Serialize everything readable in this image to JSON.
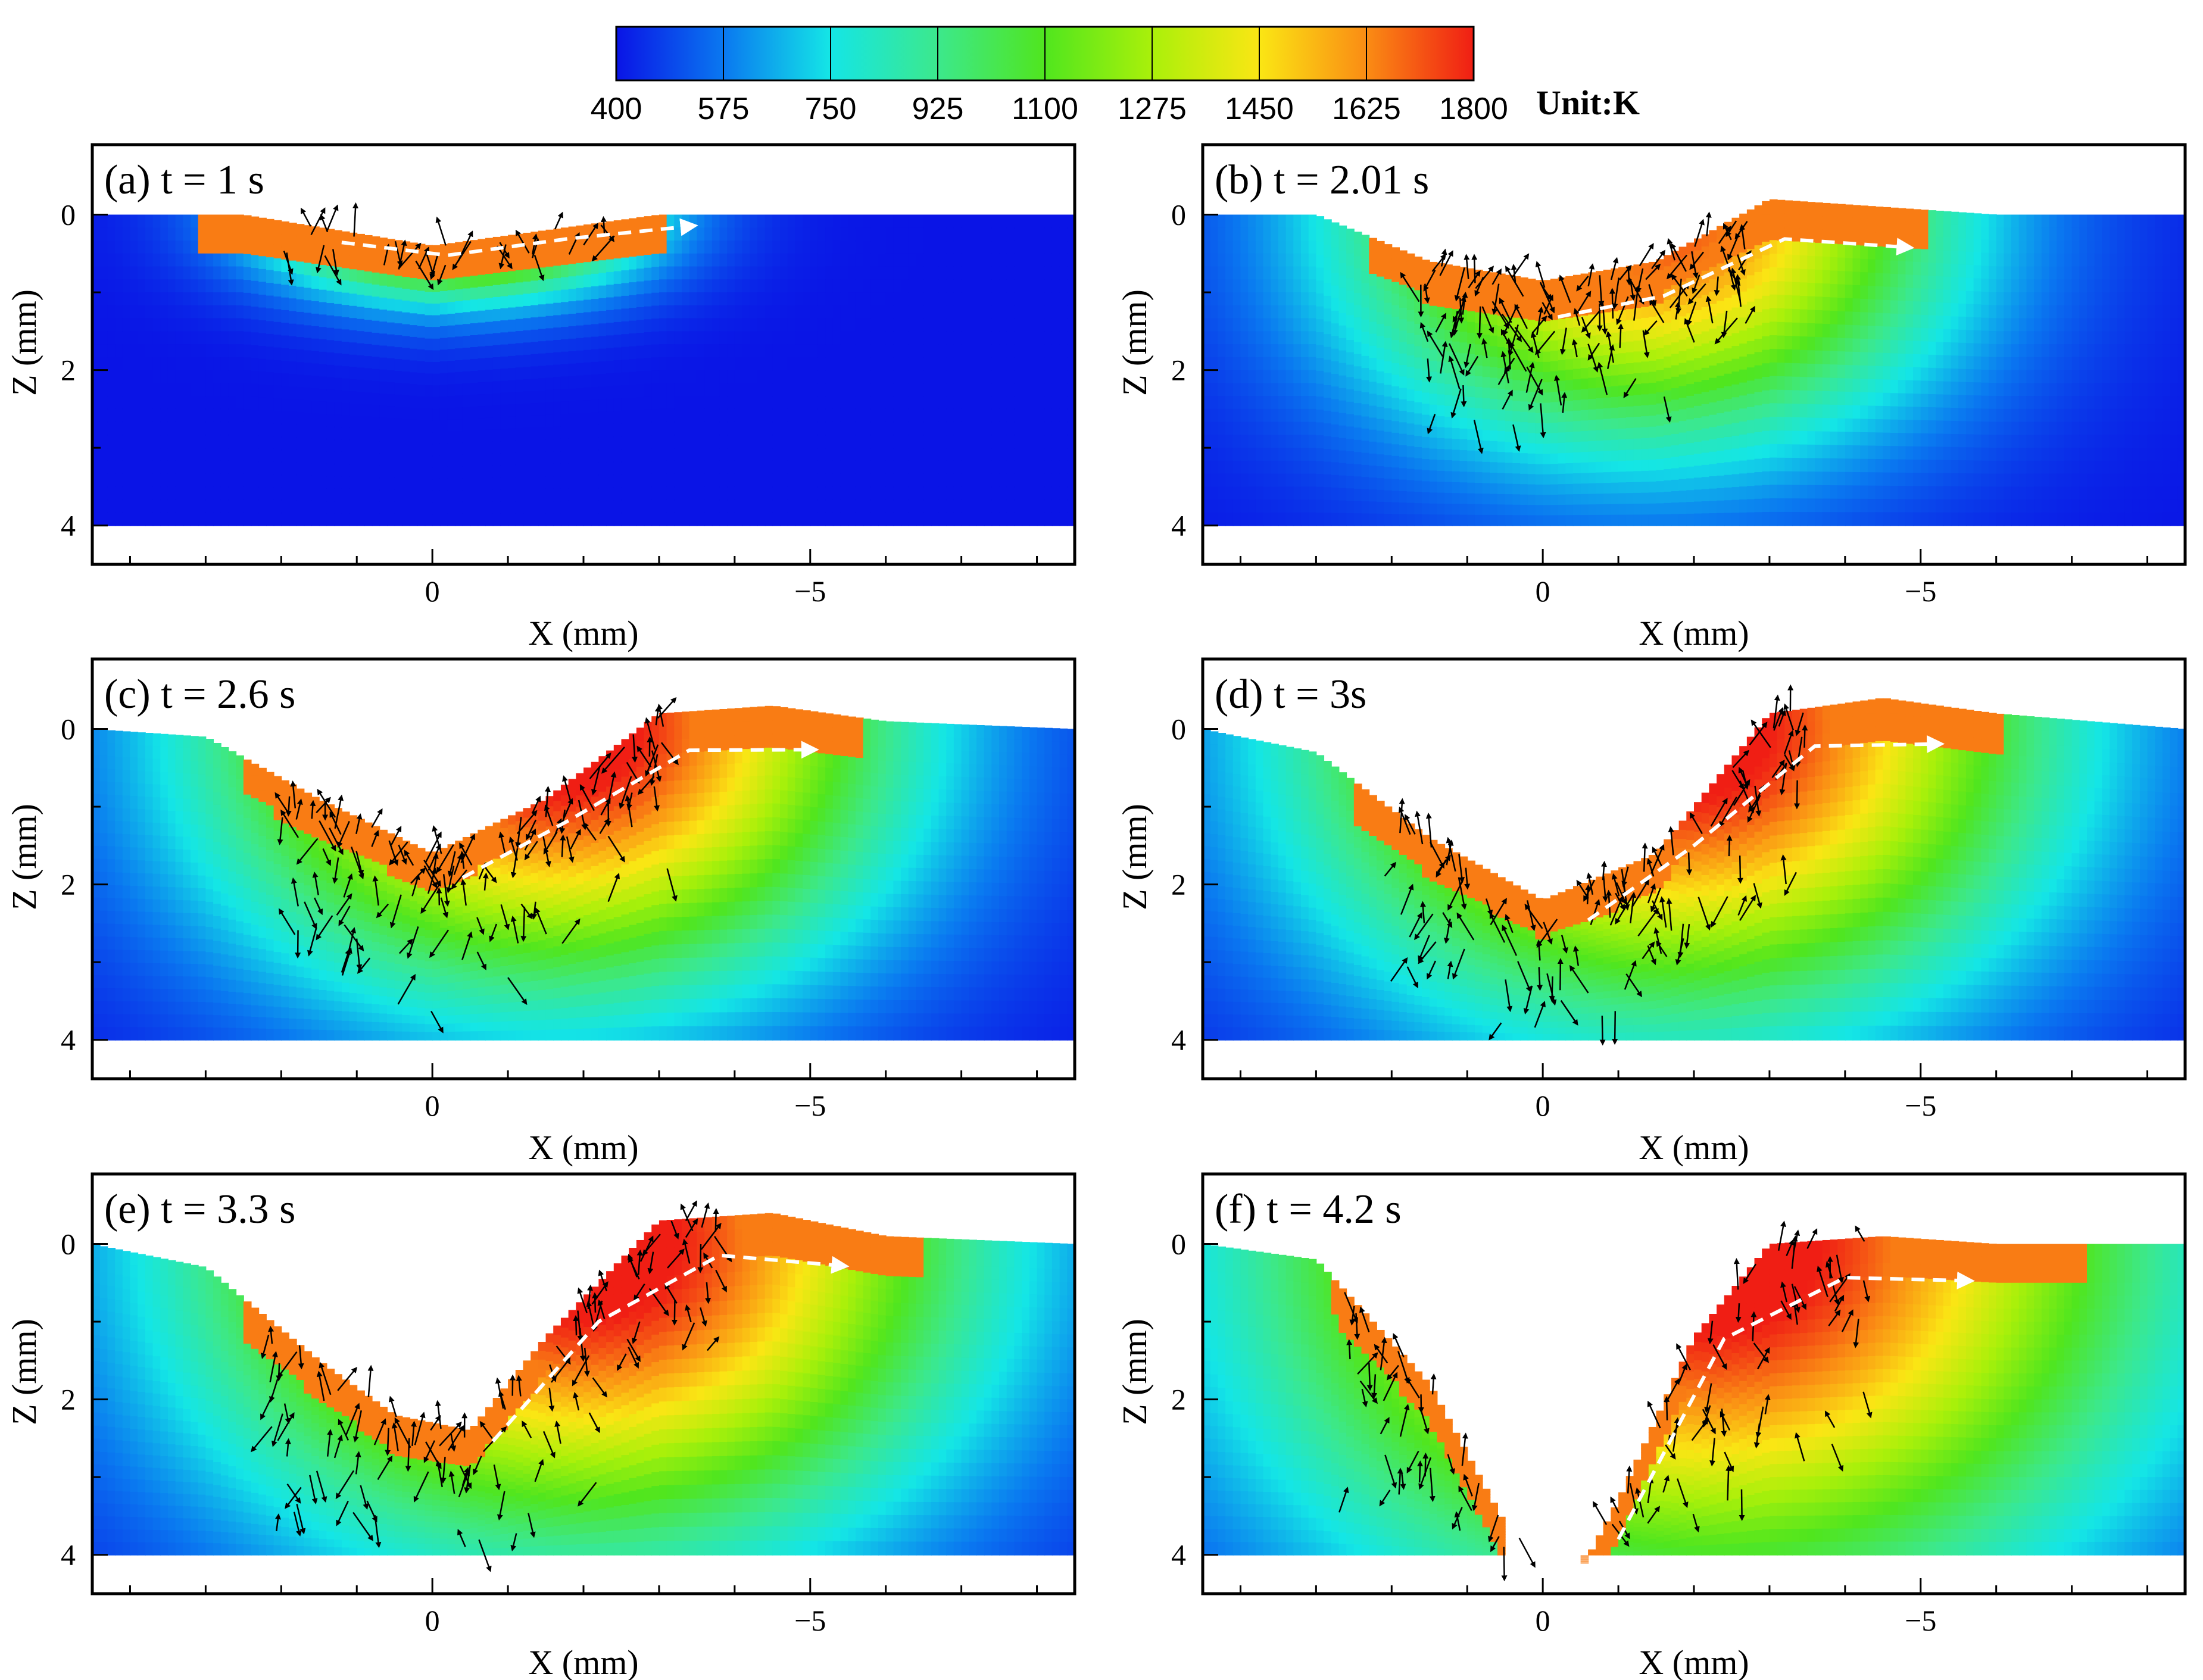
{
  "figure": {
    "colorbar": {
      "ticks": [
        "400",
        "575",
        "750",
        "925",
        "1100",
        "1275",
        "1450",
        "1625",
        "1800"
      ],
      "unit_label": "Unit:K",
      "min": 400,
      "max": 1800,
      "colors": [
        "#0a14e6",
        "#0a78f0",
        "#14e6e6",
        "#3ce88c",
        "#50e61e",
        "#aaf00a",
        "#fae614",
        "#fa8c14",
        "#f01e14"
      ]
    },
    "arrow_color": "#000000",
    "flow_guide_color": "#ffffff"
  },
  "chart_data": [
    {
      "type": "heatmap",
      "panel": "(a) t = 1 s",
      "time_s": 1,
      "xlabel": "X (mm)",
      "ylabel": "Z (mm)",
      "xlim": [
        4.5,
        -8.5
      ],
      "ylim": [
        4.5,
        -0.9
      ],
      "xticks": [
        0,
        -5
      ],
      "xtick_labels": [
        "0",
        "−5"
      ],
      "yticks": [
        0,
        2,
        4
      ],
      "ytick_labels": [
        "0",
        "2",
        "4"
      ],
      "surface_x": [
        4.5,
        2.5,
        0,
        -3,
        -3.5,
        -8.5
      ],
      "surface_z": [
        0,
        0,
        0.4,
        0,
        0,
        0
      ],
      "bottom_z": 4.0
    },
    {
      "type": "heatmap",
      "panel": "(b) t = 2.01 s",
      "time_s": 2.01,
      "xlabel": "X (mm)",
      "ylabel": "Z (mm)",
      "xlim": [
        4.5,
        -8.5
      ],
      "ylim": [
        4.5,
        -0.9
      ],
      "xticks": [
        0,
        -5
      ],
      "xtick_labels": [
        "0",
        "−5"
      ],
      "yticks": [
        0,
        2,
        4
      ],
      "ytick_labels": [
        "0",
        "2",
        "4"
      ],
      "surface_x": [
        4.5,
        3,
        1.5,
        0,
        -1.5,
        -3,
        -4.5,
        -6,
        -8.5
      ],
      "surface_z": [
        0,
        0,
        0.6,
        0.85,
        0.6,
        -0.2,
        -0.1,
        0,
        0
      ],
      "bottom_z": 4.0
    },
    {
      "type": "heatmap",
      "panel": "(c) t = 2.6 s",
      "time_s": 2.6,
      "xlabel": "X (mm)",
      "ylabel": "Z (mm)",
      "xlim": [
        4.5,
        -8.5
      ],
      "ylim": [
        4.5,
        -0.9
      ],
      "xticks": [
        0,
        -5
      ],
      "xtick_labels": [
        "0",
        "−5"
      ],
      "yticks": [
        0,
        2,
        4
      ],
      "ytick_labels": [
        "0",
        "2",
        "4"
      ],
      "surface_x": [
        4.5,
        3,
        1.5,
        0,
        -1.5,
        -3,
        -4.5,
        -6,
        -8.5
      ],
      "surface_z": [
        0,
        0.1,
        0.9,
        1.6,
        0.9,
        -0.2,
        -0.3,
        -0.1,
        0
      ],
      "bottom_z": 4.0
    },
    {
      "type": "heatmap",
      "panel": "(d) t = 3s",
      "time_s": 3,
      "xlabel": "X (mm)",
      "ylabel": "Z (mm)",
      "xlim": [
        4.5,
        -8.5
      ],
      "ylim": [
        4.5,
        -0.9
      ],
      "xticks": [
        0,
        -5
      ],
      "xtick_labels": [
        "0",
        "−5"
      ],
      "yticks": [
        0,
        2,
        4
      ],
      "ytick_labels": [
        "0",
        "2",
        "4"
      ],
      "surface_x": [
        4.5,
        3,
        1.5,
        0,
        -1.5,
        -3,
        -4.5,
        -6,
        -8.5
      ],
      "surface_z": [
        0,
        0.3,
        1.4,
        2.2,
        1.6,
        -0.2,
        -0.4,
        -0.2,
        0
      ],
      "bottom_z": 4.0
    },
    {
      "type": "heatmap",
      "panel": "(e) t = 3.3 s",
      "time_s": 3.3,
      "xlabel": "X (mm)",
      "ylabel": "Z (mm)",
      "xlim": [
        4.5,
        -8.5
      ],
      "ylim": [
        4.5,
        -0.9
      ],
      "xticks": [
        0,
        -5
      ],
      "xtick_labels": [
        "0",
        "−5"
      ],
      "yticks": [
        0,
        2,
        4
      ],
      "ytick_labels": [
        "0",
        "2",
        "4"
      ],
      "surface_x": [
        4.5,
        3,
        1.5,
        0.5,
        -0.5,
        -1.5,
        -3,
        -4.5,
        -6,
        -8.5
      ],
      "surface_z": [
        0,
        0.3,
        1.5,
        2.2,
        2.4,
        1.2,
        -0.3,
        -0.4,
        -0.1,
        0
      ],
      "bottom_z": 4.0
    },
    {
      "type": "heatmap",
      "panel": "(f) t = 4.2 s",
      "time_s": 4.2,
      "xlabel": "X (mm)",
      "ylabel": "Z (mm)",
      "xlim": [
        4.5,
        -8.5
      ],
      "ylim": [
        4.5,
        -0.9
      ],
      "xticks": [
        0,
        -5
      ],
      "xtick_labels": [
        "0",
        "−5"
      ],
      "yticks": [
        0,
        2,
        4
      ],
      "ytick_labels": [
        "0",
        "2",
        "4"
      ],
      "surface_x": [
        4.5,
        3,
        1.5,
        0.5,
        -0.5,
        -1,
        -2,
        -3,
        -4.5,
        -6,
        -8.5
      ],
      "surface_z": [
        0,
        0.2,
        1.8,
        3.6,
        4.2,
        3.3,
        1.2,
        0,
        -0.1,
        0,
        0
      ],
      "bottom_z": 4.0,
      "keyhole": "through"
    }
  ]
}
